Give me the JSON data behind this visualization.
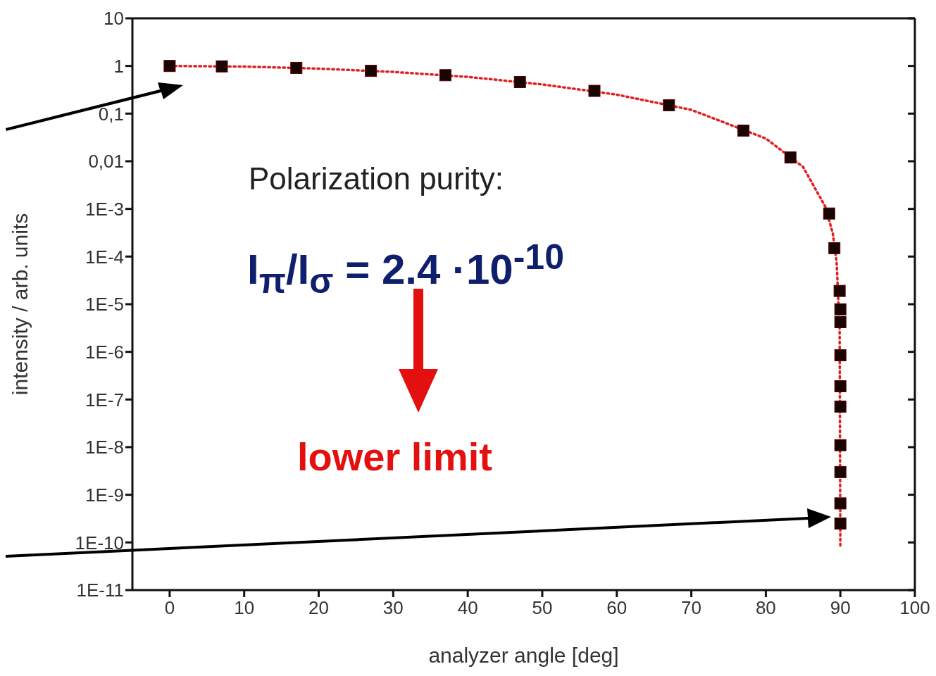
{
  "chart_data": {
    "type": "scatter",
    "xlabel": "analyzer angle [deg]",
    "ylabel": "intensity / arb. units",
    "log": "y",
    "xlim": [
      -5,
      100
    ],
    "xticks": [
      0,
      10,
      20,
      30,
      40,
      50,
      60,
      70,
      80,
      90,
      100
    ],
    "ylim": [
      1e-11,
      10
    ],
    "yticks": [
      {
        "value": 10,
        "label": "10"
      },
      {
        "value": 1,
        "label": "1"
      },
      {
        "value": 0.1,
        "label": "0,1"
      },
      {
        "value": 0.01,
        "label": "0,01"
      },
      {
        "value": 0.001,
        "label": "1E-3"
      },
      {
        "value": 0.0001,
        "label": "1E-4"
      },
      {
        "value": 1e-05,
        "label": "1E-5"
      },
      {
        "value": 1e-06,
        "label": "1E-6"
      },
      {
        "value": 1e-07,
        "label": "1E-7"
      },
      {
        "value": 1e-08,
        "label": "1E-8"
      },
      {
        "value": 1e-09,
        "label": "1E-9"
      },
      {
        "value": 1e-10,
        "label": "1E-10"
      },
      {
        "value": 1e-11,
        "label": "1E-11"
      }
    ],
    "grid": false,
    "legend": false,
    "series": [
      {
        "color": "#1a0505",
        "marker": "square",
        "x": [
          0,
          7,
          17,
          27,
          37,
          47,
          57,
          67,
          77,
          83.3,
          88.5,
          89.2,
          89.9,
          90,
          90,
          90,
          90,
          90,
          90,
          90,
          90,
          90
        ],
        "values": [
          1,
          0.98,
          0.91,
          0.79,
          0.64,
          0.46,
          0.3,
          0.15,
          0.044,
          0.012,
          0.0008,
          0.00015,
          1.9e-05,
          7.8e-06,
          4.2e-06,
          8.5e-07,
          1.9e-07,
          7.1e-08,
          1.1e-08,
          3e-09,
          6.6e-10,
          2.5e-10
        ]
      },
      {
        "type": "line",
        "color": "#e02020",
        "line_style": "dotted",
        "marker": "none",
        "x": [
          0,
          10,
          20,
          30,
          40,
          50,
          60,
          70,
          80,
          85,
          88,
          89,
          89.5,
          89.9,
          90
        ],
        "values": [
          1,
          0.97,
          0.88,
          0.75,
          0.59,
          0.41,
          0.25,
          0.12,
          0.03,
          0.0076,
          0.0011,
          0.0003,
          7.6e-05,
          3e-06,
          8.5e-11
        ]
      }
    ],
    "annotations": [
      "Polarization purity:",
      "I$_{π}$/I$_{σ}$ = 2.4 ·10$^{-10}$",
      "lower limit"
    ]
  }
}
